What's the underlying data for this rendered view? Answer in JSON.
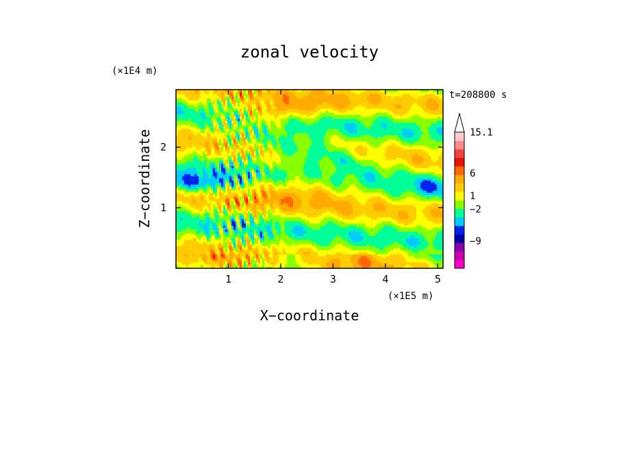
{
  "chart_data": {
    "type": "heatmap",
    "title": "zonal velocity",
    "xlabel": "X−coordinate",
    "ylabel": "Z−coordinate",
    "x_unit": "(×1E5 m)",
    "y_unit": "(×1E4 m)",
    "time_label": "t=208800 s",
    "xlim": [
      0,
      5.1
    ],
    "ylim": [
      0,
      2.95
    ],
    "x_ticks": [
      {
        "value": 1,
        "label": "1"
      },
      {
        "value": 2,
        "label": "2"
      },
      {
        "value": 3,
        "label": "3"
      },
      {
        "value": 4,
        "label": "4"
      },
      {
        "value": 5,
        "label": "5"
      }
    ],
    "y_ticks": [
      {
        "value": 1,
        "label": "1"
      },
      {
        "value": 2,
        "label": "2"
      }
    ],
    "colorbar": {
      "min": -15.1,
      "max": 15.1,
      "extend": "max",
      "colors": [
        "#ff00cc",
        "#cc00aa",
        "#8800aa",
        "#0000aa",
        "#0022ee",
        "#00ccff",
        "#00ff99",
        "#88ff00",
        "#ffff00",
        "#ffcc00",
        "#ffaa00",
        "#ff6600",
        "#ee1100",
        "#ee4444",
        "#ff8888",
        "#ffcccc"
      ],
      "labels": [
        {
          "value": -9,
          "label": "−9"
        },
        {
          "value": -2,
          "label": "−2"
        },
        {
          "value": 1,
          "label": "1"
        },
        {
          "value": 6,
          "label": "6"
        },
        {
          "value": 15.1,
          "label": "15.1"
        }
      ]
    },
    "grid": false
  }
}
